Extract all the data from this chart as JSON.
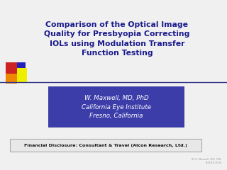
{
  "title_lines": [
    "Comparison of the Optical Image",
    "Quality for Presbyopia Correcting",
    "IOLs using Modulation Transfer",
    "Function Testing"
  ],
  "title_color": "#1a1a8c",
  "subtitle_lines": [
    "W. Maxwell, MD, PhD",
    "California Eye Institute",
    "Fresno, California"
  ],
  "subtitle_text_color": "#ffffff",
  "subtitle_box_color": "#3d3daa",
  "disclosure_text": "Financial Disclosure: Consultant & Travel (Alcon Research, Ltd.)",
  "watermark_line1": "W. R. Maxwell, MD, PhD",
  "watermark_line2": "ASCRS 2008",
  "bg_color": "#f0f0f0",
  "accent_red": "#cc2222",
  "accent_orange": "#ee8800",
  "accent_yellow": "#eeee00",
  "accent_blue": "#2222bb",
  "line_color": "#333388",
  "disclosure_box_color": "#e8e8e8",
  "disclosure_border_color": "#aaaaaa",
  "title_fontsize": 7.8,
  "subtitle_fontsize": 6.2,
  "disclosure_fontsize": 4.6
}
